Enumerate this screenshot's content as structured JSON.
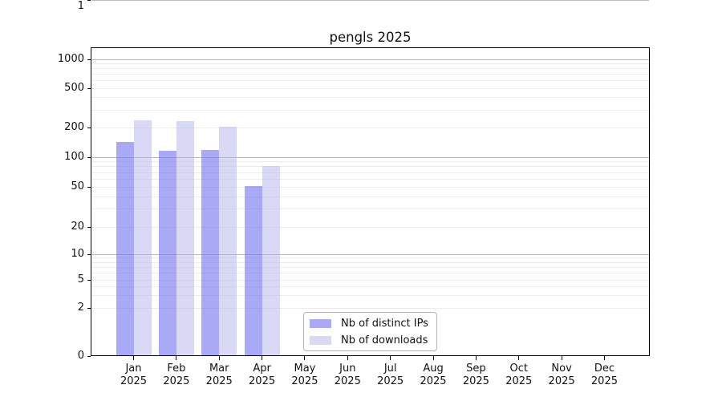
{
  "chart_data": {
    "type": "bar",
    "title": "pengls 2025",
    "xlabel": "",
    "ylabel": "",
    "months": [
      "Jan",
      "Feb",
      "Mar",
      "Apr",
      "May",
      "Jun",
      "Jul",
      "Aug",
      "Sep",
      "Oct",
      "Nov",
      "Dec"
    ],
    "year_label": "2025",
    "categories": [
      "Jan 2025",
      "Feb 2025",
      "Mar 2025",
      "Apr 2025",
      "May 2025",
      "Jun 2025",
      "Jul 2025",
      "Aug 2025",
      "Sep 2025",
      "Oct 2025",
      "Nov 2025",
      "Dec 2025"
    ],
    "series": [
      {
        "name": "Nb of distinct IPs",
        "fill": "#7878f0",
        "fill_opacity": 0.64,
        "solid_equivalent": "#a9a9f5",
        "values": [
          142,
          117,
          118,
          51,
          null,
          null,
          null,
          null,
          null,
          null,
          null,
          null
        ]
      },
      {
        "name": "Nb of downloads",
        "fill": "#b4b4ee",
        "fill_opacity": 0.5,
        "solid_equivalent": "#d9d9f7",
        "values": [
          236,
          232,
          203,
          81,
          null,
          null,
          null,
          null,
          null,
          null,
          null,
          null
        ]
      }
    ],
    "yticks": [
      1000,
      500,
      200,
      100,
      50,
      20,
      10,
      5,
      2,
      1,
      0
    ],
    "yscale": "log-like above 1 with compressed linear region near 0",
    "ylim": [
      0,
      1300
    ],
    "grid": {
      "major_lines": [
        1,
        10,
        100,
        1000
      ],
      "minor_subs": [
        2,
        3,
        4,
        5,
        6,
        7,
        8,
        9
      ],
      "minor_decades": [
        1,
        10,
        100
      ]
    },
    "legend": {
      "position": "inside bottom, left of center",
      "entries": [
        "Nb of distinct IPs",
        "Nb of downloads"
      ]
    },
    "colors": {
      "background": "#ffffff",
      "axis": "#000000",
      "major_grid": "#b9b9b9",
      "minor_grid": "#ececec",
      "text": "#111111"
    }
  }
}
